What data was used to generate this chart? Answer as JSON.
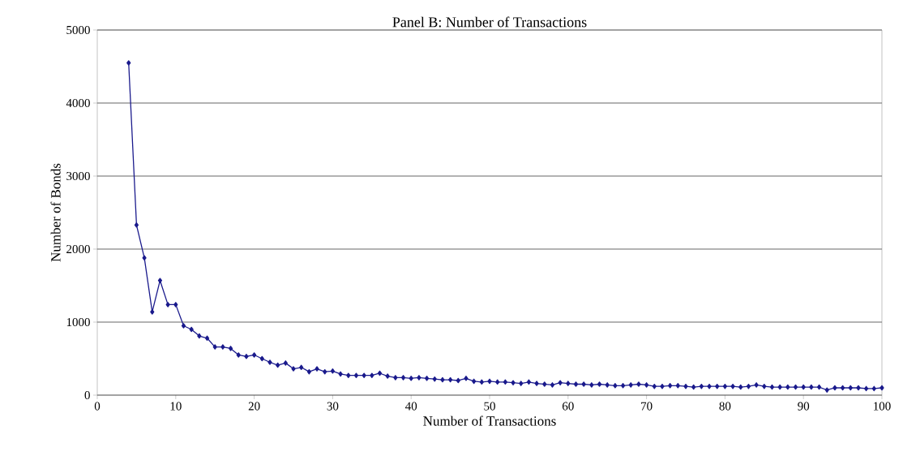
{
  "chart_data": {
    "type": "line",
    "title": "Panel B: Number of Transactions",
    "xlabel": "Number  of Transactions",
    "ylabel": "Number  of Bonds",
    "x": [
      4,
      5,
      6,
      7,
      8,
      9,
      10,
      11,
      12,
      13,
      14,
      15,
      16,
      17,
      18,
      19,
      20,
      21,
      22,
      23,
      24,
      25,
      26,
      27,
      28,
      29,
      30,
      31,
      32,
      33,
      34,
      35,
      36,
      37,
      38,
      39,
      40,
      41,
      42,
      43,
      44,
      45,
      46,
      47,
      48,
      49,
      50,
      51,
      52,
      53,
      54,
      55,
      56,
      57,
      58,
      59,
      60,
      61,
      62,
      63,
      64,
      65,
      66,
      67,
      68,
      69,
      70,
      71,
      72,
      73,
      74,
      75,
      76,
      77,
      78,
      79,
      80,
      81,
      82,
      83,
      84,
      85,
      86,
      87,
      88,
      89,
      90,
      91,
      92,
      93,
      94,
      95,
      96,
      97,
      98,
      99,
      100
    ],
    "series": [
      {
        "color": "#1a1a8c",
        "values": [
          4550,
          2330,
          1880,
          1140,
          1570,
          1240,
          1240,
          950,
          900,
          810,
          780,
          660,
          660,
          640,
          550,
          530,
          550,
          500,
          450,
          410,
          440,
          360,
          380,
          320,
          360,
          320,
          330,
          290,
          270,
          270,
          270,
          270,
          300,
          260,
          240,
          240,
          230,
          240,
          230,
          220,
          210,
          210,
          200,
          230,
          190,
          180,
          190,
          180,
          180,
          170,
          160,
          180,
          160,
          150,
          140,
          170,
          160,
          150,
          150,
          140,
          150,
          140,
          130,
          130,
          140,
          150,
          140,
          120,
          120,
          130,
          130,
          120,
          110,
          120,
          120,
          120,
          120,
          120,
          110,
          120,
          140,
          120,
          110,
          110,
          110,
          110,
          110,
          110,
          110,
          70,
          100,
          100,
          100,
          100,
          90,
          90,
          100
        ]
      }
    ],
    "xlim": [
      0,
      100
    ],
    "ylim": [
      0,
      5000
    ],
    "xticks": [
      0,
      10,
      20,
      30,
      40,
      50,
      60,
      70,
      80,
      90,
      100
    ],
    "yticks": [
      0,
      1000,
      2000,
      3000,
      4000,
      5000
    ],
    "grid": "y",
    "marker": "diamond",
    "line_style": "solid"
  }
}
